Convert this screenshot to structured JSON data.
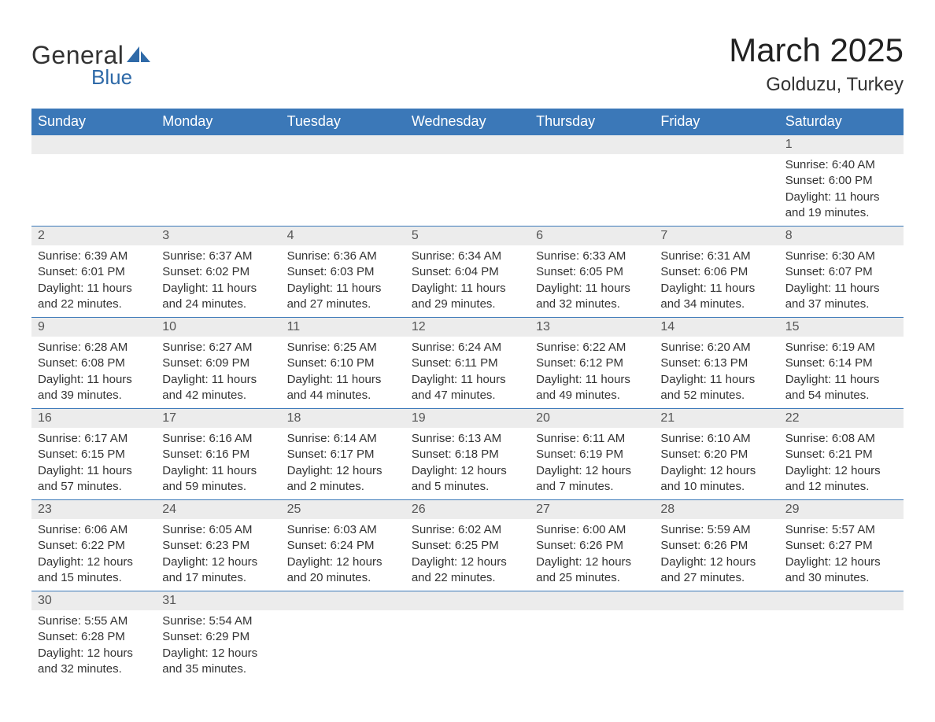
{
  "logo": {
    "text1": "General",
    "text2": "Blue",
    "shape_color": "#2f6aa8"
  },
  "title": {
    "month": "March 2025",
    "location": "Golduzu, Turkey"
  },
  "colors": {
    "header_bg": "#3b78b8",
    "header_text": "#ffffff",
    "row_sep": "#3b78b8",
    "daynum_bg": "#ececec",
    "text": "#333333"
  },
  "weekdays": [
    "Sunday",
    "Monday",
    "Tuesday",
    "Wednesday",
    "Thursday",
    "Friday",
    "Saturday"
  ],
  "weeks": [
    [
      null,
      null,
      null,
      null,
      null,
      null,
      {
        "n": "1",
        "sr": "Sunrise: 6:40 AM",
        "ss": "Sunset: 6:00 PM",
        "d1": "Daylight: 11 hours",
        "d2": "and 19 minutes."
      }
    ],
    [
      {
        "n": "2",
        "sr": "Sunrise: 6:39 AM",
        "ss": "Sunset: 6:01 PM",
        "d1": "Daylight: 11 hours",
        "d2": "and 22 minutes."
      },
      {
        "n": "3",
        "sr": "Sunrise: 6:37 AM",
        "ss": "Sunset: 6:02 PM",
        "d1": "Daylight: 11 hours",
        "d2": "and 24 minutes."
      },
      {
        "n": "4",
        "sr": "Sunrise: 6:36 AM",
        "ss": "Sunset: 6:03 PM",
        "d1": "Daylight: 11 hours",
        "d2": "and 27 minutes."
      },
      {
        "n": "5",
        "sr": "Sunrise: 6:34 AM",
        "ss": "Sunset: 6:04 PM",
        "d1": "Daylight: 11 hours",
        "d2": "and 29 minutes."
      },
      {
        "n": "6",
        "sr": "Sunrise: 6:33 AM",
        "ss": "Sunset: 6:05 PM",
        "d1": "Daylight: 11 hours",
        "d2": "and 32 minutes."
      },
      {
        "n": "7",
        "sr": "Sunrise: 6:31 AM",
        "ss": "Sunset: 6:06 PM",
        "d1": "Daylight: 11 hours",
        "d2": "and 34 minutes."
      },
      {
        "n": "8",
        "sr": "Sunrise: 6:30 AM",
        "ss": "Sunset: 6:07 PM",
        "d1": "Daylight: 11 hours",
        "d2": "and 37 minutes."
      }
    ],
    [
      {
        "n": "9",
        "sr": "Sunrise: 6:28 AM",
        "ss": "Sunset: 6:08 PM",
        "d1": "Daylight: 11 hours",
        "d2": "and 39 minutes."
      },
      {
        "n": "10",
        "sr": "Sunrise: 6:27 AM",
        "ss": "Sunset: 6:09 PM",
        "d1": "Daylight: 11 hours",
        "d2": "and 42 minutes."
      },
      {
        "n": "11",
        "sr": "Sunrise: 6:25 AM",
        "ss": "Sunset: 6:10 PM",
        "d1": "Daylight: 11 hours",
        "d2": "and 44 minutes."
      },
      {
        "n": "12",
        "sr": "Sunrise: 6:24 AM",
        "ss": "Sunset: 6:11 PM",
        "d1": "Daylight: 11 hours",
        "d2": "and 47 minutes."
      },
      {
        "n": "13",
        "sr": "Sunrise: 6:22 AM",
        "ss": "Sunset: 6:12 PM",
        "d1": "Daylight: 11 hours",
        "d2": "and 49 minutes."
      },
      {
        "n": "14",
        "sr": "Sunrise: 6:20 AM",
        "ss": "Sunset: 6:13 PM",
        "d1": "Daylight: 11 hours",
        "d2": "and 52 minutes."
      },
      {
        "n": "15",
        "sr": "Sunrise: 6:19 AM",
        "ss": "Sunset: 6:14 PM",
        "d1": "Daylight: 11 hours",
        "d2": "and 54 minutes."
      }
    ],
    [
      {
        "n": "16",
        "sr": "Sunrise: 6:17 AM",
        "ss": "Sunset: 6:15 PM",
        "d1": "Daylight: 11 hours",
        "d2": "and 57 minutes."
      },
      {
        "n": "17",
        "sr": "Sunrise: 6:16 AM",
        "ss": "Sunset: 6:16 PM",
        "d1": "Daylight: 11 hours",
        "d2": "and 59 minutes."
      },
      {
        "n": "18",
        "sr": "Sunrise: 6:14 AM",
        "ss": "Sunset: 6:17 PM",
        "d1": "Daylight: 12 hours",
        "d2": "and 2 minutes."
      },
      {
        "n": "19",
        "sr": "Sunrise: 6:13 AM",
        "ss": "Sunset: 6:18 PM",
        "d1": "Daylight: 12 hours",
        "d2": "and 5 minutes."
      },
      {
        "n": "20",
        "sr": "Sunrise: 6:11 AM",
        "ss": "Sunset: 6:19 PM",
        "d1": "Daylight: 12 hours",
        "d2": "and 7 minutes."
      },
      {
        "n": "21",
        "sr": "Sunrise: 6:10 AM",
        "ss": "Sunset: 6:20 PM",
        "d1": "Daylight: 12 hours",
        "d2": "and 10 minutes."
      },
      {
        "n": "22",
        "sr": "Sunrise: 6:08 AM",
        "ss": "Sunset: 6:21 PM",
        "d1": "Daylight: 12 hours",
        "d2": "and 12 minutes."
      }
    ],
    [
      {
        "n": "23",
        "sr": "Sunrise: 6:06 AM",
        "ss": "Sunset: 6:22 PM",
        "d1": "Daylight: 12 hours",
        "d2": "and 15 minutes."
      },
      {
        "n": "24",
        "sr": "Sunrise: 6:05 AM",
        "ss": "Sunset: 6:23 PM",
        "d1": "Daylight: 12 hours",
        "d2": "and 17 minutes."
      },
      {
        "n": "25",
        "sr": "Sunrise: 6:03 AM",
        "ss": "Sunset: 6:24 PM",
        "d1": "Daylight: 12 hours",
        "d2": "and 20 minutes."
      },
      {
        "n": "26",
        "sr": "Sunrise: 6:02 AM",
        "ss": "Sunset: 6:25 PM",
        "d1": "Daylight: 12 hours",
        "d2": "and 22 minutes."
      },
      {
        "n": "27",
        "sr": "Sunrise: 6:00 AM",
        "ss": "Sunset: 6:26 PM",
        "d1": "Daylight: 12 hours",
        "d2": "and 25 minutes."
      },
      {
        "n": "28",
        "sr": "Sunrise: 5:59 AM",
        "ss": "Sunset: 6:26 PM",
        "d1": "Daylight: 12 hours",
        "d2": "and 27 minutes."
      },
      {
        "n": "29",
        "sr": "Sunrise: 5:57 AM",
        "ss": "Sunset: 6:27 PM",
        "d1": "Daylight: 12 hours",
        "d2": "and 30 minutes."
      }
    ],
    [
      {
        "n": "30",
        "sr": "Sunrise: 5:55 AM",
        "ss": "Sunset: 6:28 PM",
        "d1": "Daylight: 12 hours",
        "d2": "and 32 minutes."
      },
      {
        "n": "31",
        "sr": "Sunrise: 5:54 AM",
        "ss": "Sunset: 6:29 PM",
        "d1": "Daylight: 12 hours",
        "d2": "and 35 minutes."
      },
      null,
      null,
      null,
      null,
      null
    ]
  ]
}
